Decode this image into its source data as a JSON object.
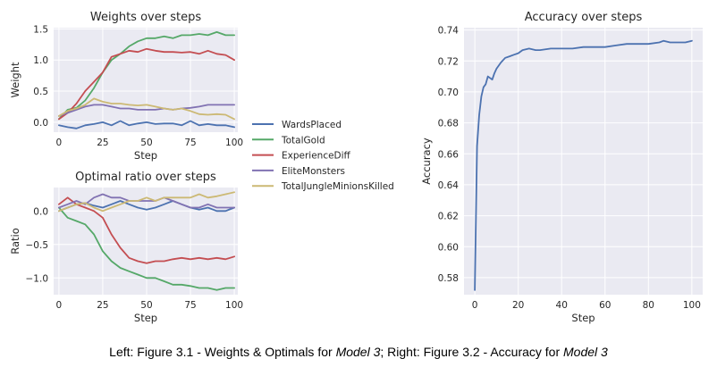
{
  "caption": {
    "part1": "Left: Figure 3.1 - Weights & Optimals for ",
    "model_a": "Model 3",
    "part2": "; Right: Figure 3.2 - Accuracy for ",
    "model_b": "Model 3"
  },
  "chart_data": [
    {
      "id": "weights",
      "type": "line",
      "title": "Weights over steps",
      "xlabel": "Step",
      "ylabel": "Weight",
      "xlim": [
        -3,
        102
      ],
      "ylim": [
        -0.16,
        1.52
      ],
      "xticks": [
        0,
        25,
        50,
        75,
        100
      ],
      "yticks": [
        0.0,
        0.5,
        1.0,
        1.5
      ],
      "ytick_labels": [
        "0.0",
        "0.5",
        "1.0",
        "1.5"
      ],
      "grid": true,
      "x": [
        0,
        5,
        10,
        15,
        20,
        25,
        30,
        35,
        40,
        45,
        50,
        55,
        60,
        65,
        70,
        75,
        80,
        85,
        90,
        95,
        100
      ],
      "series": [
        {
          "name": "WardsPlaced",
          "color": "#4c72b0",
          "values": [
            -0.05,
            -0.08,
            -0.1,
            -0.05,
            -0.03,
            0.0,
            -0.05,
            0.02,
            -0.05,
            -0.02,
            0.0,
            -0.03,
            -0.02,
            -0.02,
            -0.05,
            0.02,
            -0.05,
            -0.03,
            -0.05,
            -0.05,
            -0.08
          ]
        },
        {
          "name": "TotalGold",
          "color": "#55a868",
          "values": [
            0.05,
            0.2,
            0.23,
            0.35,
            0.55,
            0.8,
            1.0,
            1.1,
            1.22,
            1.3,
            1.35,
            1.35,
            1.38,
            1.35,
            1.4,
            1.4,
            1.42,
            1.4,
            1.45,
            1.4,
            1.4
          ]
        },
        {
          "name": "ExperienceDiff",
          "color": "#c44e52",
          "values": [
            0.05,
            0.15,
            0.3,
            0.5,
            0.65,
            0.8,
            1.05,
            1.1,
            1.15,
            1.13,
            1.18,
            1.15,
            1.13,
            1.13,
            1.12,
            1.13,
            1.1,
            1.15,
            1.1,
            1.08,
            1.0
          ]
        },
        {
          "name": "EliteMonsters",
          "color": "#8172b2",
          "values": [
            0.1,
            0.15,
            0.2,
            0.25,
            0.28,
            0.28,
            0.25,
            0.22,
            0.22,
            0.2,
            0.2,
            0.2,
            0.22,
            0.2,
            0.22,
            0.23,
            0.25,
            0.28,
            0.28,
            0.28,
            0.28
          ]
        },
        {
          "name": "TotalJungleMinionsKilled",
          "color": "#ccb974",
          "values": [
            0.1,
            0.18,
            0.22,
            0.28,
            0.38,
            0.33,
            0.3,
            0.3,
            0.28,
            0.27,
            0.28,
            0.25,
            0.22,
            0.2,
            0.22,
            0.18,
            0.13,
            0.12,
            0.13,
            0.12,
            0.05
          ]
        }
      ]
    },
    {
      "id": "optimal",
      "type": "line",
      "title": "Optimal ratio over steps",
      "xlabel": "Step",
      "ylabel": "Ratio",
      "xlim": [
        -3,
        102
      ],
      "ylim": [
        -1.25,
        0.35
      ],
      "xticks": [
        0,
        25,
        50,
        75,
        100
      ],
      "yticks": [
        0.0,
        -0.5,
        -1.0
      ],
      "ytick_labels": [
        "0.0",
        "−0.5",
        "−1.0"
      ],
      "grid": true,
      "x": [
        0,
        5,
        10,
        15,
        20,
        25,
        30,
        35,
        40,
        45,
        50,
        55,
        60,
        65,
        70,
        75,
        80,
        85,
        90,
        95,
        100
      ],
      "series": [
        {
          "name": "WardsPlaced",
          "color": "#4c72b0",
          "values": [
            0.0,
            0.05,
            0.1,
            0.12,
            0.08,
            0.05,
            0.1,
            0.15,
            0.1,
            0.05,
            0.02,
            0.05,
            0.1,
            0.15,
            0.1,
            0.05,
            0.02,
            0.05,
            0.0,
            0.0,
            0.05
          ]
        },
        {
          "name": "TotalGold",
          "color": "#55a868",
          "values": [
            0.05,
            -0.1,
            -0.15,
            -0.2,
            -0.35,
            -0.6,
            -0.75,
            -0.85,
            -0.9,
            -0.95,
            -1.0,
            -1.0,
            -1.05,
            -1.1,
            -1.1,
            -1.12,
            -1.15,
            -1.15,
            -1.18,
            -1.15,
            -1.15
          ]
        },
        {
          "name": "ExperienceDiff",
          "color": "#c44e52",
          "values": [
            0.1,
            0.2,
            0.1,
            0.05,
            0.0,
            -0.1,
            -0.35,
            -0.55,
            -0.7,
            -0.75,
            -0.78,
            -0.75,
            -0.75,
            -0.72,
            -0.7,
            -0.72,
            -0.7,
            -0.72,
            -0.7,
            -0.72,
            -0.68
          ]
        },
        {
          "name": "EliteMonsters",
          "color": "#8172b2",
          "values": [
            0.05,
            0.1,
            0.15,
            0.1,
            0.2,
            0.25,
            0.2,
            0.2,
            0.15,
            0.15,
            0.15,
            0.15,
            0.2,
            0.15,
            0.1,
            0.05,
            0.05,
            0.1,
            0.05,
            0.05,
            0.05
          ]
        },
        {
          "name": "TotalJungleMinionsKilled",
          "color": "#ccb974",
          "values": [
            0.0,
            0.05,
            0.1,
            0.12,
            0.05,
            0.0,
            0.05,
            0.1,
            0.15,
            0.15,
            0.2,
            0.15,
            0.2,
            0.2,
            0.2,
            0.2,
            0.25,
            0.2,
            0.22,
            0.25,
            0.28
          ]
        }
      ]
    },
    {
      "id": "accuracy",
      "type": "line",
      "title": "Accuracy over steps",
      "xlabel": "Step",
      "ylabel": "Accuracy",
      "xlim": [
        -5,
        105
      ],
      "ylim": [
        0.569,
        0.7415
      ],
      "xticks": [
        0,
        20,
        40,
        60,
        80,
        100
      ],
      "yticks": [
        0.58,
        0.6,
        0.62,
        0.64,
        0.66,
        0.68,
        0.7,
        0.72,
        0.74
      ],
      "ytick_labels": [
        "0.58",
        "0.60",
        "0.62",
        "0.64",
        "0.66",
        "0.68",
        "0.70",
        "0.72",
        "0.74"
      ],
      "grid": true,
      "x": [
        0,
        1,
        2,
        3,
        4,
        5,
        6,
        7,
        8,
        9,
        10,
        12,
        14,
        16,
        18,
        20,
        22,
        25,
        28,
        30,
        35,
        40,
        45,
        50,
        55,
        60,
        65,
        70,
        75,
        80,
        85,
        87,
        90,
        95,
        97,
        100
      ],
      "series": [
        {
          "name": "Accuracy",
          "color": "#4c72b0",
          "values": [
            0.572,
            0.665,
            0.685,
            0.697,
            0.703,
            0.705,
            0.71,
            0.709,
            0.708,
            0.712,
            0.715,
            0.719,
            0.722,
            0.723,
            0.724,
            0.725,
            0.727,
            0.728,
            0.727,
            0.727,
            0.728,
            0.728,
            0.728,
            0.729,
            0.729,
            0.729,
            0.73,
            0.731,
            0.731,
            0.731,
            0.732,
            0.733,
            0.732,
            0.732,
            0.732,
            0.733
          ]
        }
      ]
    }
  ],
  "legend": {
    "placement": "between-panels",
    "entries": [
      {
        "name": "WardsPlaced",
        "color": "#4c72b0"
      },
      {
        "name": "TotalGold",
        "color": "#55a868"
      },
      {
        "name": "ExperienceDiff",
        "color": "#c44e52"
      },
      {
        "name": "EliteMonsters",
        "color": "#8172b2"
      },
      {
        "name": "TotalJungleMinionsKilled",
        "color": "#ccb974"
      }
    ]
  }
}
